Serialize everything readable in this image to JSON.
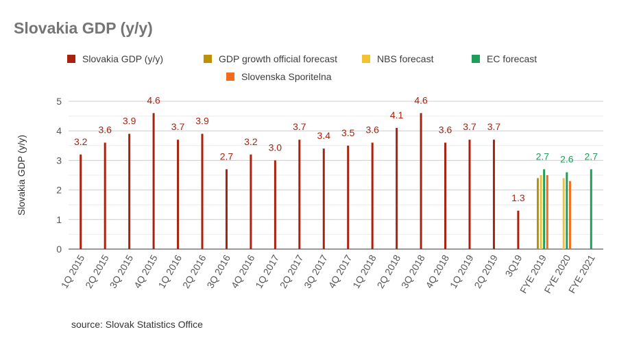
{
  "chart_data": {
    "type": "bar",
    "title": "Slovakia GDP (y/y)",
    "ylabel": "Slovakia GDP (y/y)",
    "xlabel": "",
    "ylim": [
      0,
      5
    ],
    "yticks": [
      0,
      1,
      2,
      3,
      4,
      5
    ],
    "grid": true,
    "legend_position": "top",
    "categories": [
      "1Q 2015",
      "2Q 2015",
      "3Q 2015",
      "4Q 2015",
      "1Q 2016",
      "2Q 2016",
      "3Q 2016",
      "4Q 2016",
      "1Q 2017",
      "2Q 2017",
      "3Q 2017",
      "4Q 2017",
      "1Q 2018",
      "2Q 2018",
      "3Q 2018",
      "4Q 2018",
      "1Q 2019",
      "2Q 2019",
      "3Q19",
      "FYE 2019",
      "FYE 2020",
      "FYE 2021"
    ],
    "series": [
      {
        "name": "Slovakia GDP (y/y)",
        "color": "#a8220f",
        "show_labels": true,
        "values": [
          3.2,
          3.6,
          3.9,
          4.6,
          3.7,
          3.9,
          2.7,
          3.2,
          3.0,
          3.7,
          3.4,
          3.5,
          3.6,
          4.1,
          4.6,
          3.6,
          3.7,
          3.7,
          1.3,
          null,
          null,
          null
        ],
        "labels": [
          "3.2",
          "3.6",
          "3.9",
          "4.6",
          "3.7",
          "3.9",
          "2.7",
          "3.2",
          "3.0",
          "3.7",
          "3.4",
          "3.5",
          "3.6",
          "4.1",
          "4.6",
          "3.6",
          "3.7",
          "3.7",
          "1.3",
          "",
          "",
          ""
        ]
      },
      {
        "name": "GDP growth official forecast",
        "color": "#bf9000",
        "show_labels": false,
        "values": [
          null,
          null,
          null,
          null,
          null,
          null,
          null,
          null,
          null,
          null,
          null,
          null,
          null,
          null,
          null,
          null,
          null,
          null,
          null,
          2.4,
          null,
          null
        ]
      },
      {
        "name": "NBS forecast",
        "color": "#f1c232",
        "show_labels": false,
        "values": [
          null,
          null,
          null,
          null,
          null,
          null,
          null,
          null,
          null,
          null,
          null,
          null,
          null,
          null,
          null,
          null,
          null,
          null,
          null,
          2.5,
          2.4,
          null
        ]
      },
      {
        "name": "EC forecast",
        "color": "#1e9e5a",
        "show_labels": true,
        "values": [
          null,
          null,
          null,
          null,
          null,
          null,
          null,
          null,
          null,
          null,
          null,
          null,
          null,
          null,
          null,
          null,
          null,
          null,
          null,
          2.7,
          2.6,
          2.7
        ],
        "labels": [
          "",
          "",
          "",
          "",
          "",
          "",
          "",
          "",
          "",
          "",
          "",
          "",
          "",
          "",
          "",
          "",
          "",
          "",
          "",
          "2.7",
          "2.6",
          "2.7"
        ]
      },
      {
        "name": "Slovenska Sporitelna",
        "color": "#f46c1b",
        "show_labels": false,
        "values": [
          null,
          null,
          null,
          null,
          null,
          null,
          null,
          null,
          null,
          null,
          null,
          null,
          null,
          null,
          null,
          null,
          null,
          null,
          null,
          2.5,
          2.3,
          null
        ]
      }
    ]
  },
  "source_note": "source: Slovak Statistics Office"
}
